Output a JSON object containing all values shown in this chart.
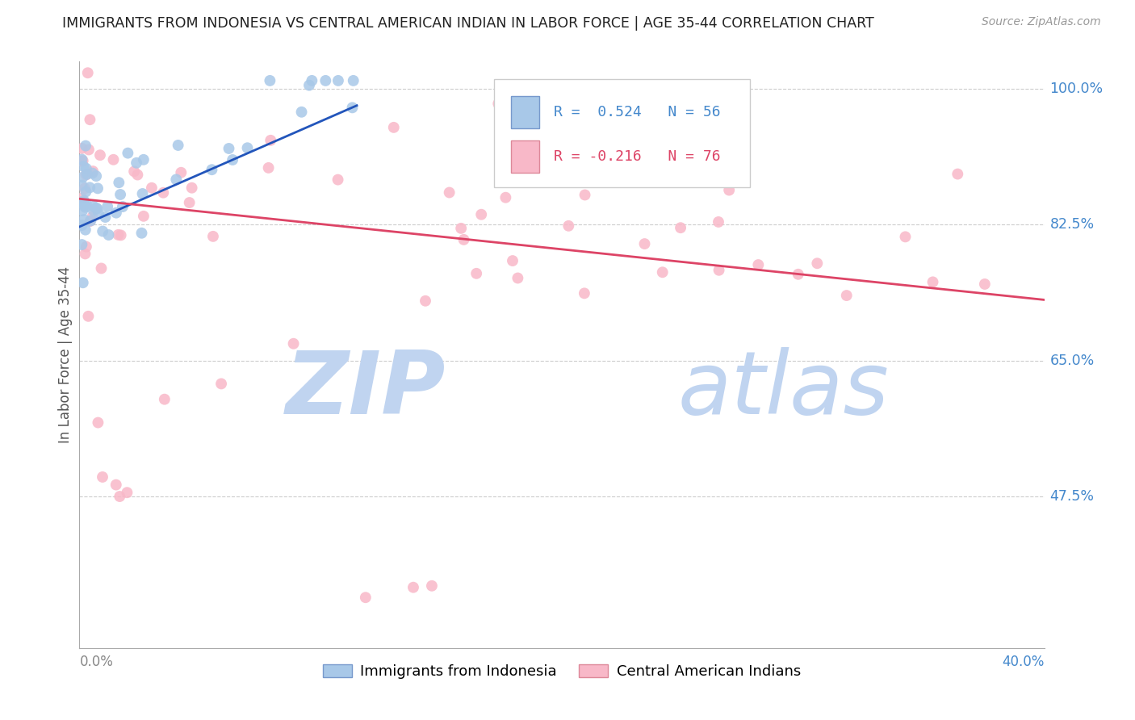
{
  "title": "IMMIGRANTS FROM INDONESIA VS CENTRAL AMERICAN INDIAN IN LABOR FORCE | AGE 35-44 CORRELATION CHART",
  "source": "Source: ZipAtlas.com",
  "ylabel_label": "In Labor Force | Age 35-44",
  "xmin": 0.0,
  "xmax": 0.4,
  "ymin": 0.28,
  "ymax": 1.035,
  "ytick_positions": [
    0.475,
    0.65,
    0.825,
    1.0
  ],
  "ytick_labels": [
    "47.5%",
    "65.0%",
    "82.5%",
    "100.0%"
  ],
  "blue_R": 0.524,
  "blue_N": 56,
  "pink_R": -0.216,
  "pink_N": 76,
  "blue_color": "#a8c8e8",
  "pink_color": "#f8b8c8",
  "blue_line_color": "#2255bb",
  "pink_line_color": "#dd4466",
  "blue_trend_x": [
    0.0,
    0.115
  ],
  "blue_trend_y": [
    0.822,
    0.978
  ],
  "pink_trend_x": [
    0.0,
    0.4
  ],
  "pink_trend_y": [
    0.858,
    0.728
  ],
  "watermark_zip_color": "#c0d4f0",
  "watermark_atlas_color": "#c0d4f0",
  "legend_label_blue": "Immigrants from Indonesia",
  "legend_label_pink": "Central American Indians",
  "blue_text_color": "#4488cc",
  "pink_text_color": "#dd4466",
  "title_color": "#222222",
  "source_color": "#999999",
  "grid_color": "#cccccc",
  "axis_color": "#aaaaaa",
  "ylabel_color": "#555555",
  "right_label_color": "#4488cc",
  "left_label_color": "#888888",
  "marker_size": 100
}
